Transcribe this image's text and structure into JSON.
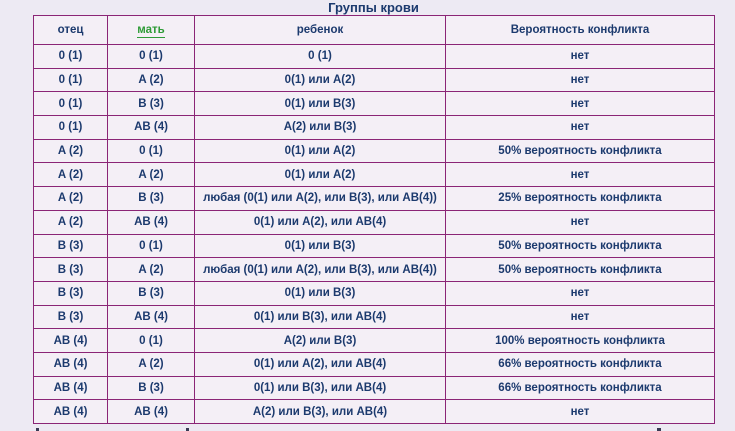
{
  "title": "Группы крови",
  "colors": {
    "page_bg": "#EDEAF3",
    "cell_bg": "#F4EFF6",
    "border": "#8B2576",
    "text": "#1C3A6E",
    "mother_link_green": "#2E9B37"
  },
  "table": {
    "headers": [
      "отец",
      "мать",
      "ребенок",
      "Вероятность конфликта"
    ],
    "rows": [
      [
        "0 (1)",
        "0 (1)",
        "0 (1)",
        "нет"
      ],
      [
        "0 (1)",
        "A (2)",
        "0(1) или A(2)",
        "нет"
      ],
      [
        "0 (1)",
        "B (3)",
        "0(1) или B(3)",
        "нет"
      ],
      [
        "0 (1)",
        "AB (4)",
        "A(2) или B(3)",
        "нет"
      ],
      [
        "A (2)",
        "0 (1)",
        "0(1) или A(2)",
        "50% вероятность конфликта"
      ],
      [
        "A (2)",
        "A (2)",
        "0(1) или A(2)",
        "нет"
      ],
      [
        "A (2)",
        "B (3)",
        "любая (0(1) или A(2), или B(3), или AB(4))",
        "25% вероятность конфликта"
      ],
      [
        "A (2)",
        "AB (4)",
        "0(1) или A(2), или AB(4)",
        "нет"
      ],
      [
        "B (3)",
        "0 (1)",
        "0(1) или B(3)",
        "50% вероятность конфликта"
      ],
      [
        "B (3)",
        "A (2)",
        "любая (0(1) или A(2), или B(3), или AB(4))",
        "50% вероятность конфликта"
      ],
      [
        "B (3)",
        "B (3)",
        "0(1) или B(3)",
        "нет"
      ],
      [
        "B (3)",
        "AB (4)",
        "0(1) или B(3), или AB(4)",
        "нет"
      ],
      [
        "AB (4)",
        "0 (1)",
        "A(2) или B(3)",
        "100% вероятность конфликта"
      ],
      [
        "AB (4)",
        "A (2)",
        "0(1) или A(2), или AB(4)",
        "66% вероятность конфликта"
      ],
      [
        "AB (4)",
        "B (3)",
        "0(1) или B(3), или AB(4)",
        "66% вероятность конфликта"
      ],
      [
        "AB (4)",
        "AB (4)",
        "A(2) или B(3), или AB(4)",
        "нет"
      ]
    ]
  }
}
